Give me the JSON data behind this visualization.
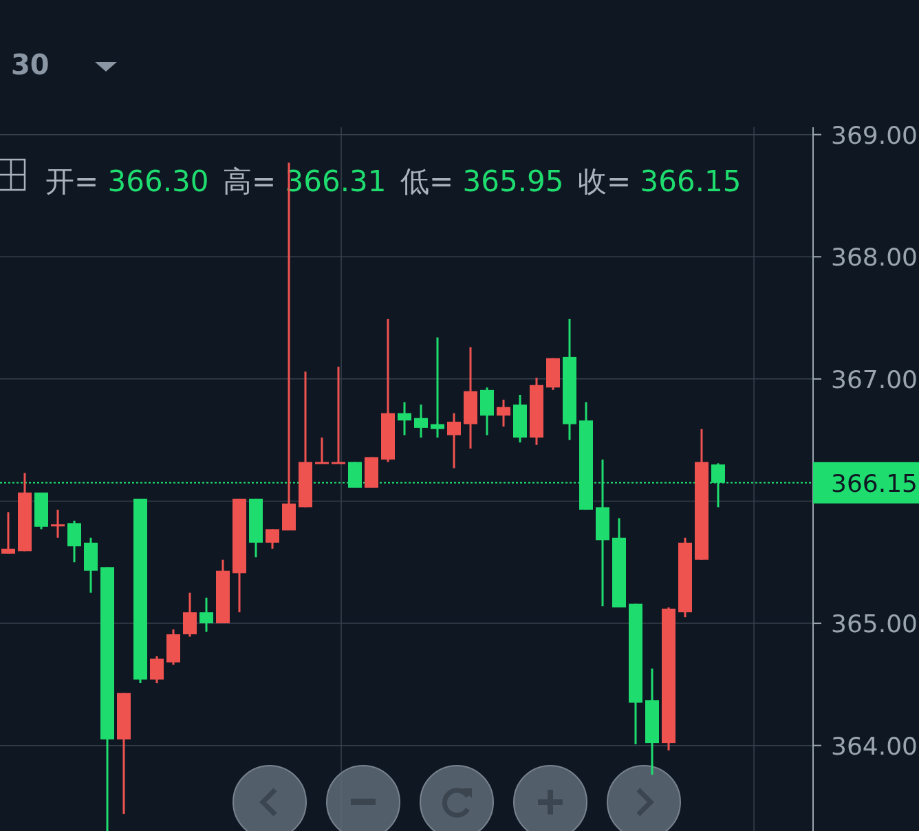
{
  "chart_data": {
    "type": "candlestick",
    "categories": [
      null,
      null,
      null,
      null,
      null,
      null,
      null,
      null,
      null,
      null,
      null,
      null,
      null,
      null,
      null,
      null,
      null,
      null,
      null,
      null,
      null,
      null,
      null,
      null,
      null,
      null,
      null,
      null,
      null,
      null,
      null,
      null,
      null,
      null,
      null,
      null,
      null,
      null,
      null,
      null,
      null,
      null,
      null,
      null
    ],
    "ohlc": [
      [
        365.57,
        365.91,
        365.57,
        365.61
      ],
      [
        365.59,
        366.23,
        365.59,
        366.07
      ],
      [
        366.07,
        366.07,
        365.77,
        365.79
      ],
      [
        365.8,
        365.93,
        365.7,
        365.81
      ],
      [
        365.82,
        365.84,
        365.5,
        365.63
      ],
      [
        365.66,
        365.7,
        365.25,
        365.43
      ],
      [
        365.46,
        365.46,
        363.3,
        364.05
      ],
      [
        364.05,
        364.43,
        363.44,
        364.43
      ],
      [
        366.02,
        366.02,
        364.51,
        364.54
      ],
      [
        364.54,
        364.73,
        364.51,
        364.71
      ],
      [
        364.68,
        364.95,
        364.66,
        364.91
      ],
      [
        364.91,
        365.25,
        364.89,
        365.09
      ],
      [
        365.09,
        365.21,
        364.93,
        365.0
      ],
      [
        365.0,
        365.52,
        365.0,
        365.43
      ],
      [
        365.41,
        366.02,
        365.09,
        366.02
      ],
      [
        366.02,
        366.02,
        365.54,
        365.66
      ],
      [
        365.66,
        365.77,
        365.61,
        365.77
      ],
      [
        365.76,
        368.77,
        365.76,
        365.98
      ],
      [
        365.95,
        367.06,
        365.95,
        366.32
      ],
      [
        366.31,
        366.52,
        366.31,
        366.32
      ],
      [
        366.31,
        367.1,
        366.31,
        366.32
      ],
      [
        366.32,
        366.32,
        366.11,
        366.11
      ],
      [
        366.11,
        366.36,
        366.11,
        366.36
      ],
      [
        366.34,
        367.49,
        366.32,
        366.72
      ],
      [
        366.72,
        366.81,
        366.54,
        366.66
      ],
      [
        366.68,
        366.79,
        366.52,
        366.6
      ],
      [
        366.63,
        367.34,
        366.52,
        366.59
      ],
      [
        366.54,
        366.72,
        366.27,
        366.65
      ],
      [
        366.63,
        367.26,
        366.43,
        366.9
      ],
      [
        366.91,
        366.93,
        366.54,
        366.7
      ],
      [
        366.7,
        366.83,
        366.61,
        366.77
      ],
      [
        366.79,
        366.87,
        366.48,
        366.52
      ],
      [
        366.52,
        367.01,
        366.46,
        366.95
      ],
      [
        366.93,
        367.17,
        366.91,
        367.17
      ],
      [
        367.18,
        367.49,
        366.5,
        366.63
      ],
      [
        366.66,
        366.81,
        365.93,
        365.93
      ],
      [
        365.95,
        366.34,
        365.14,
        365.68
      ],
      [
        365.7,
        365.86,
        365.13,
        365.13
      ],
      [
        365.16,
        365.16,
        364.01,
        364.35
      ],
      [
        364.37,
        364.63,
        363.76,
        364.02
      ],
      [
        364.02,
        365.13,
        363.96,
        365.12
      ],
      [
        365.09,
        365.7,
        365.05,
        365.66
      ],
      [
        365.52,
        366.59,
        365.52,
        366.32
      ],
      [
        366.3,
        366.31,
        365.95,
        366.15
      ]
    ],
    "colors": [
      "#ef5350",
      "#ef5350",
      "#1fdc6f",
      "#ef5350",
      "#1fdc6f",
      "#1fdc6f",
      "#1fdc6f",
      "#ef5350",
      "#1fdc6f",
      "#ef5350",
      "#ef5350",
      "#ef5350",
      "#1fdc6f",
      "#ef5350",
      "#ef5350",
      "#1fdc6f",
      "#ef5350",
      "#ef5350",
      "#ef5350",
      "#ef5350",
      "#ef5350",
      "#1fdc6f",
      "#ef5350",
      "#ef5350",
      "#1fdc6f",
      "#1fdc6f",
      "#1fdc6f",
      "#ef5350",
      "#ef5350",
      "#1fdc6f",
      "#ef5350",
      "#1fdc6f",
      "#ef5350",
      "#ef5350",
      "#1fdc6f",
      "#1fdc6f",
      "#1fdc6f",
      "#1fdc6f",
      "#1fdc6f",
      "#1fdc6f",
      "#ef5350",
      "#ef5350",
      "#ef5350",
      "#1fdc6f"
    ],
    "ylim": [
      363.3,
      369.06
    ],
    "yticks": [
      {
        "value": 364,
        "label": "364.00"
      },
      {
        "value": 365,
        "label": "365.00"
      },
      {
        "value": 366,
        "label": null
      },
      {
        "value": 367,
        "label": "367.00"
      },
      {
        "value": 368,
        "label": "368.00"
      },
      {
        "value": 369,
        "label": "369.00"
      }
    ],
    "grid": "y",
    "tick_labels": "y",
    "ref_lines": [
      {
        "axis": "y",
        "value": 366.15,
        "label": "366.15",
        "color": "#1fdc6f",
        "line_style": "dotted"
      }
    ],
    "annotations": [
      "30",
      "开= 366.30",
      "高= 366.31",
      "低= 365.95",
      "收= 366.15"
    ]
  }
}
